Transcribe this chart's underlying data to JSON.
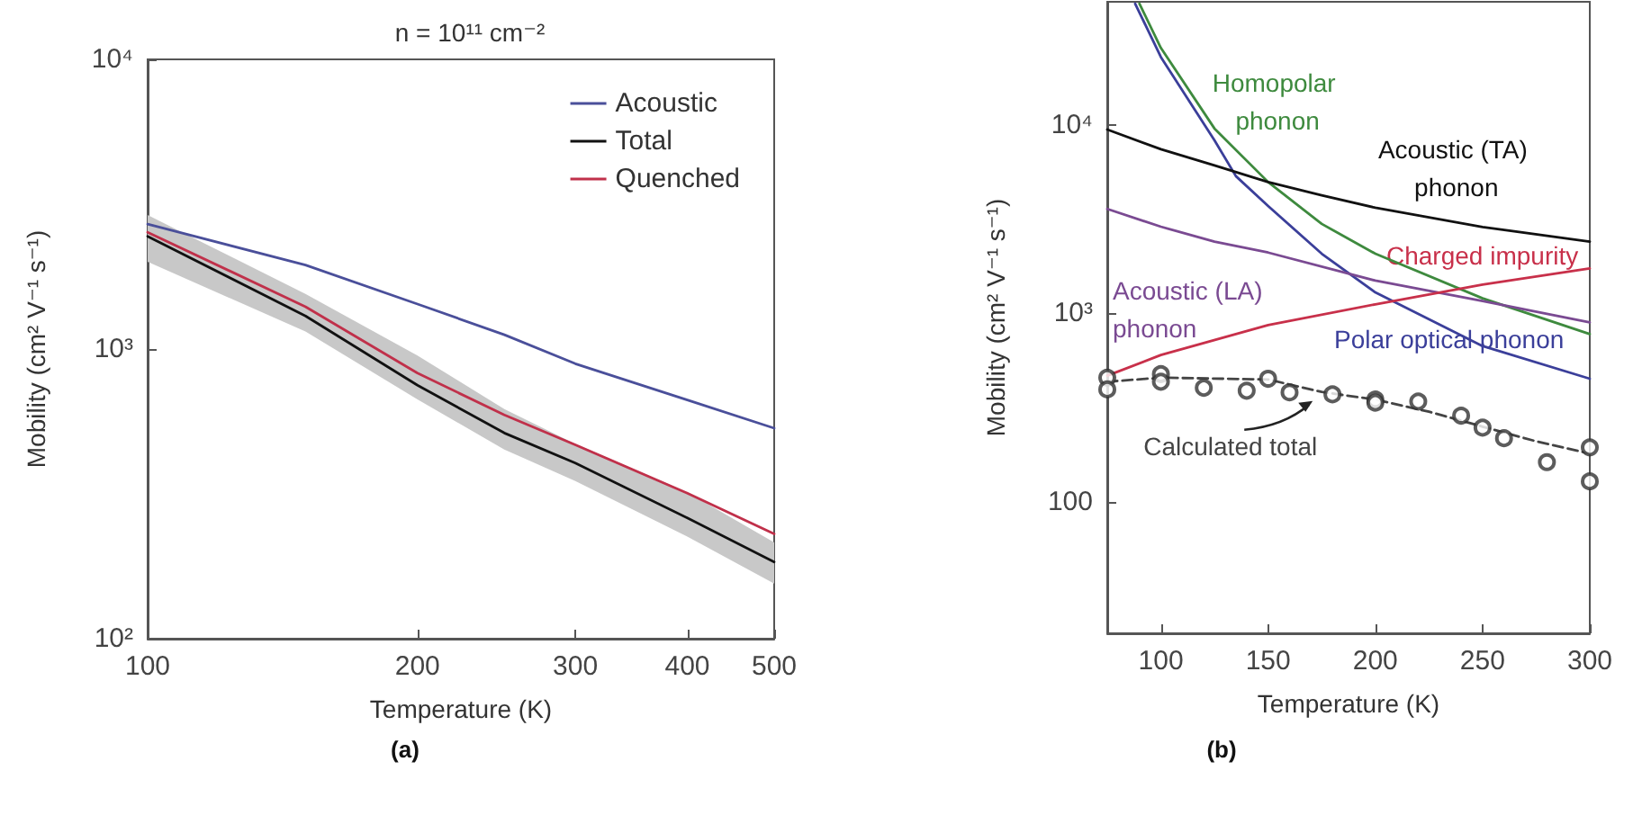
{
  "chart_data": [
    {
      "type": "line",
      "title": "n = 10¹¹ cm⁻²",
      "xlabel": "Temperature (K)",
      "ylabel": "Mobility (cm² V⁻¹ s⁻¹)",
      "annotations": [
        "(a)"
      ],
      "log": "xy",
      "xlim": [
        100,
        500
      ],
      "xticks": [
        100,
        200,
        300,
        400,
        500
      ],
      "ylim": [
        100,
        10000
      ],
      "yticks": [
        {
          "value": 100,
          "label": "10²"
        },
        {
          "value": 1000,
          "label": "10³"
        },
        {
          "value": 10000,
          "label": "10⁴"
        }
      ],
      "legend": "top right",
      "marker": "none",
      "line_style": "solid",
      "x": [
        100,
        150,
        200,
        250,
        300,
        400,
        500
      ],
      "series": [
        {
          "name": "Acoustic",
          "color": "#4a4f9a",
          "values": [
            2700,
            1950,
            1430,
            1120,
            890,
            667,
            533
          ]
        },
        {
          "name": "Total",
          "color": "#111111",
          "values": [
            2450,
            1300,
            750,
            513,
            404,
            261,
            184
          ],
          "lower": [
            2000,
            1150,
            670,
            450,
            350,
            225,
            155
          ],
          "upper": [
            2900,
            1550,
            950,
            620,
            470,
            320,
            215
          ]
        },
        {
          "name": "Quenched",
          "color": "#c0304a",
          "values": [
            2530,
            1400,
            826,
            592,
            467,
            318,
            230
          ]
        }
      ]
    },
    {
      "type": "line",
      "xlabel": "Temperature (K)",
      "ylabel": "Mobility (cm² V⁻¹ s⁻¹)",
      "annotations": [
        "(b)"
      ],
      "log": "y",
      "xlim": [
        75,
        300
      ],
      "xticks": [
        100,
        150,
        200,
        250,
        300
      ],
      "ylim": [
        20,
        45000
      ],
      "yticks": [
        {
          "value": 100,
          "label": "100"
        },
        {
          "value": 1000,
          "label": "10³"
        },
        {
          "value": 10000,
          "label": "10⁴"
        }
      ],
      "legend": false,
      "marker": "none",
      "series": [
        {
          "name": "Homopolar phonon",
          "color": "#3e8a3e",
          "x": [
            90,
            100,
            125,
            150,
            175,
            200,
            250,
            300
          ],
          "values": [
            44000,
            25600,
            9560,
            4970,
            2980,
            2070,
            1200,
            775
          ]
        },
        {
          "name": "Polar optical phonon",
          "color": "#3b3f9a",
          "x": [
            88,
            100,
            125,
            135,
            150,
            175,
            200,
            250,
            300
          ],
          "values": [
            44000,
            22900,
            8280,
            5340,
            3710,
            2070,
            1290,
            670,
            449
          ]
        },
        {
          "name": "Acoustic (TA) phonon",
          "color": "#111111",
          "x": [
            75,
            100,
            125,
            150,
            175,
            200,
            250,
            300
          ],
          "values": [
            9440,
            7420,
            6090,
            4970,
            4230,
            3630,
            2870,
            2400
          ]
        },
        {
          "name": "Acoustic (LA) phonon",
          "color": "#7a4a92",
          "x": [
            75,
            100,
            125,
            150,
            200,
            250,
            300
          ],
          "values": [
            3580,
            2880,
            2400,
            2100,
            1490,
            1160,
            895
          ]
        },
        {
          "name": "Charged impurity",
          "color": "#c8304a",
          "x": [
            75,
            100,
            150,
            200,
            250,
            300
          ],
          "values": [
            466,
            600,
            865,
            1115,
            1420,
            1730
          ]
        },
        {
          "name": "Calculated total",
          "color": "#444444",
          "line_style": "dashed",
          "x": [
            75,
            100,
            125,
            150,
            175,
            200,
            225,
            250,
            275,
            300
          ],
          "values": [
            433,
            455,
            450,
            445,
            382,
            348,
            300,
            250,
            209,
            180
          ]
        },
        {
          "type": "scatter",
          "marker": "circle",
          "color": "#333333",
          "x": [
            75,
            75,
            100,
            100,
            120,
            140,
            150,
            160,
            180,
            200,
            200,
            220,
            240,
            250,
            260,
            280,
            300,
            300
          ],
          "values": [
            455,
            394,
            475,
            433,
            402,
            388,
            449,
            380,
            371,
            348,
            335,
            340,
            286,
            247,
            217,
            162,
            194,
            128
          ]
        }
      ]
    }
  ]
}
